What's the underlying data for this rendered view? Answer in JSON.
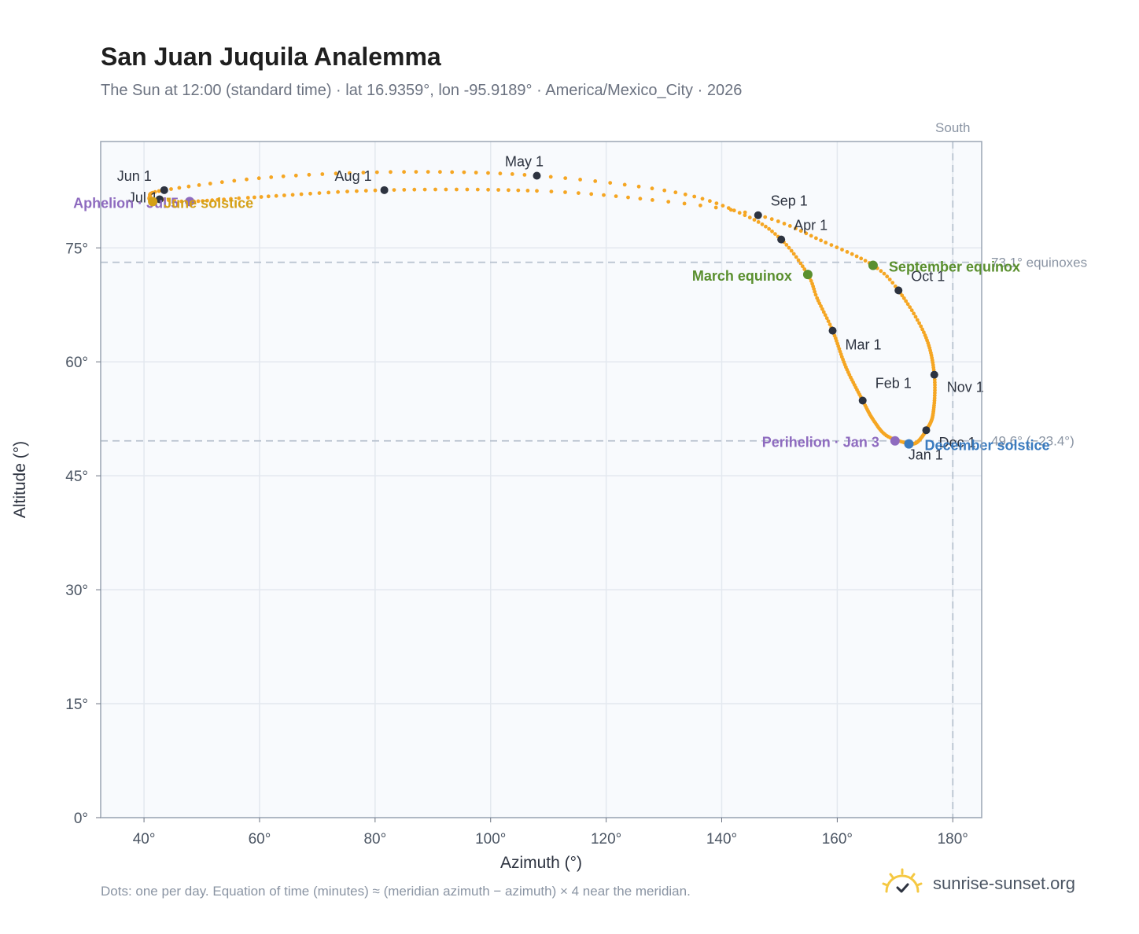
{
  "title": "San Juan Juquila Analemma",
  "subtitle": "The Sun at 12:00 (standard time) · lat 16.9359°, lon -95.9189° · America/Mexico_City · 2026",
  "footer_note": "Dots: one per day. Equation of time (minutes) ≈ (meridian azimuth − azimuth) × 4 near the meridian.",
  "brand": {
    "name": "sunrise-sunset.org",
    "icon": "sun-check-icon",
    "color": "#f5c842"
  },
  "colors": {
    "curve": "#f5a623",
    "month_marker": "#2d3340",
    "aphelion": "#8e6bbf",
    "perihelion": "#8e6bbf",
    "equinox": "#5a8f2e",
    "june_solstice": "#d4a017",
    "december_solstice": "#3a7bbf",
    "reference_line": "#b8c2cf",
    "plot_bg": "#f8fafd"
  },
  "chart_data": {
    "type": "scatter",
    "xlabel": "Azimuth (°)",
    "ylabel": "Altitude (°)",
    "xlim": [
      32.5,
      185
    ],
    "ylim": [
      0,
      89
    ],
    "x_ticks": [
      40,
      60,
      80,
      100,
      120,
      140,
      160,
      180
    ],
    "y_ticks": [
      0,
      15,
      30,
      45,
      60,
      75
    ],
    "x_tick_labels": [
      "40°",
      "60°",
      "80°",
      "100°",
      "120°",
      "140°",
      "160°",
      "180°"
    ],
    "y_tick_labels": [
      "0°",
      "15°",
      "30°",
      "45°",
      "60°",
      "75°"
    ],
    "grid": true,
    "meridian": {
      "azimuth": 180,
      "label": "South"
    },
    "reference_lines": [
      {
        "altitude": 73.1,
        "label": "73.1° equinoxes"
      },
      {
        "altitude": 49.6,
        "label": "49.6° (−23.4°)"
      }
    ],
    "months": [
      {
        "label": "Jan 1",
        "azimuth": 172.3,
        "altitude": 49.2
      },
      {
        "label": "Feb 1",
        "azimuth": 164.4,
        "altitude": 54.9
      },
      {
        "label": "Mar 1",
        "azimuth": 159.2,
        "altitude": 64.1
      },
      {
        "label": "Apr 1",
        "azimuth": 150.3,
        "altitude": 76.1
      },
      {
        "label": "May 1",
        "azimuth": 108.0,
        "altitude": 84.5
      },
      {
        "label": "Jun 1",
        "azimuth": 43.5,
        "altitude": 82.6
      },
      {
        "label": "Jul 1",
        "azimuth": 42.7,
        "altitude": 81.4
      },
      {
        "label": "Aug 1",
        "azimuth": 81.6,
        "altitude": 82.6
      },
      {
        "label": "Sep 1",
        "azimuth": 146.3,
        "altitude": 79.3
      },
      {
        "label": "Oct 1",
        "azimuth": 170.6,
        "altitude": 69.4
      },
      {
        "label": "Nov 1",
        "azimuth": 176.8,
        "altitude": 58.3
      },
      {
        "label": "Dec 1",
        "azimuth": 175.4,
        "altitude": 51.0
      }
    ],
    "events": [
      {
        "label": "Aphelion · Jul 5",
        "kind": "aphelion",
        "azimuth": 47.9,
        "altitude": 81.1
      },
      {
        "label": "June solstice",
        "kind": "june_solstice",
        "azimuth": 41.5,
        "altitude": 81.1
      },
      {
        "label": "March equinox",
        "kind": "equinox",
        "azimuth": 154.9,
        "altitude": 71.5
      },
      {
        "label": "September equinox",
        "kind": "equinox",
        "azimuth": 166.2,
        "altitude": 72.7
      },
      {
        "label": "Perihelion · Jan 3",
        "kind": "perihelion",
        "azimuth": 170.0,
        "altitude": 49.6
      },
      {
        "label": "December solstice",
        "kind": "december_solstice",
        "azimuth": 172.4,
        "altitude": 49.2
      }
    ],
    "path": [
      {
        "doy": 0,
        "azimuth": 172.3,
        "altitude": 49.2
      },
      {
        "doy": 11,
        "azimuth": 168.5,
        "altitude": 50.3
      },
      {
        "doy": 21,
        "azimuth": 166.2,
        "altitude": 52.4
      },
      {
        "doy": 31,
        "azimuth": 164.4,
        "altitude": 54.9
      },
      {
        "doy": 45,
        "azimuth": 161.5,
        "altitude": 59.3
      },
      {
        "doy": 59,
        "azimuth": 159.2,
        "altitude": 64.1
      },
      {
        "doy": 70,
        "azimuth": 156.5,
        "altitude": 68.4
      },
      {
        "doy": 78,
        "azimuth": 154.9,
        "altitude": 71.5
      },
      {
        "doy": 90,
        "azimuth": 150.3,
        "altitude": 76.1
      },
      {
        "doy": 100,
        "azimuth": 144.0,
        "altitude": 79.3
      },
      {
        "doy": 110,
        "azimuth": 132.0,
        "altitude": 82.3
      },
      {
        "doy": 120,
        "azimuth": 108.0,
        "altitude": 84.5
      },
      {
        "doy": 131,
        "azimuth": 85.0,
        "altitude": 85.0
      },
      {
        "doy": 141,
        "azimuth": 62.0,
        "altitude": 84.3
      },
      {
        "doy": 151,
        "azimuth": 43.5,
        "altitude": 82.6
      },
      {
        "doy": 161,
        "azimuth": 41.0,
        "altitude": 81.7
      },
      {
        "doy": 171,
        "azimuth": 41.5,
        "altitude": 81.1
      },
      {
        "doy": 181,
        "azimuth": 42.7,
        "altitude": 81.4
      },
      {
        "doy": 186,
        "azimuth": 47.9,
        "altitude": 81.1
      },
      {
        "doy": 196,
        "azimuth": 58.0,
        "altitude": 81.6
      },
      {
        "doy": 212,
        "azimuth": 81.6,
        "altitude": 82.6
      },
      {
        "doy": 227,
        "azimuth": 108.0,
        "altitude": 82.5
      },
      {
        "doy": 236,
        "azimuth": 128.0,
        "altitude": 81.3
      },
      {
        "doy": 243,
        "azimuth": 146.3,
        "altitude": 79.3
      },
      {
        "doy": 255,
        "azimuth": 158.0,
        "altitude": 75.7
      },
      {
        "doy": 265,
        "azimuth": 166.2,
        "altitude": 72.7
      },
      {
        "doy": 273,
        "azimuth": 170.6,
        "altitude": 69.4
      },
      {
        "doy": 288,
        "azimuth": 175.2,
        "altitude": 63.5
      },
      {
        "doy": 304,
        "azimuth": 176.8,
        "altitude": 58.3
      },
      {
        "doy": 320,
        "azimuth": 176.6,
        "altitude": 53.2
      },
      {
        "doy": 334,
        "azimuth": 175.4,
        "altitude": 51.0
      },
      {
        "doy": 349,
        "azimuth": 173.8,
        "altitude": 49.4
      },
      {
        "doy": 364,
        "azimuth": 172.3,
        "altitude": 49.2
      }
    ]
  }
}
